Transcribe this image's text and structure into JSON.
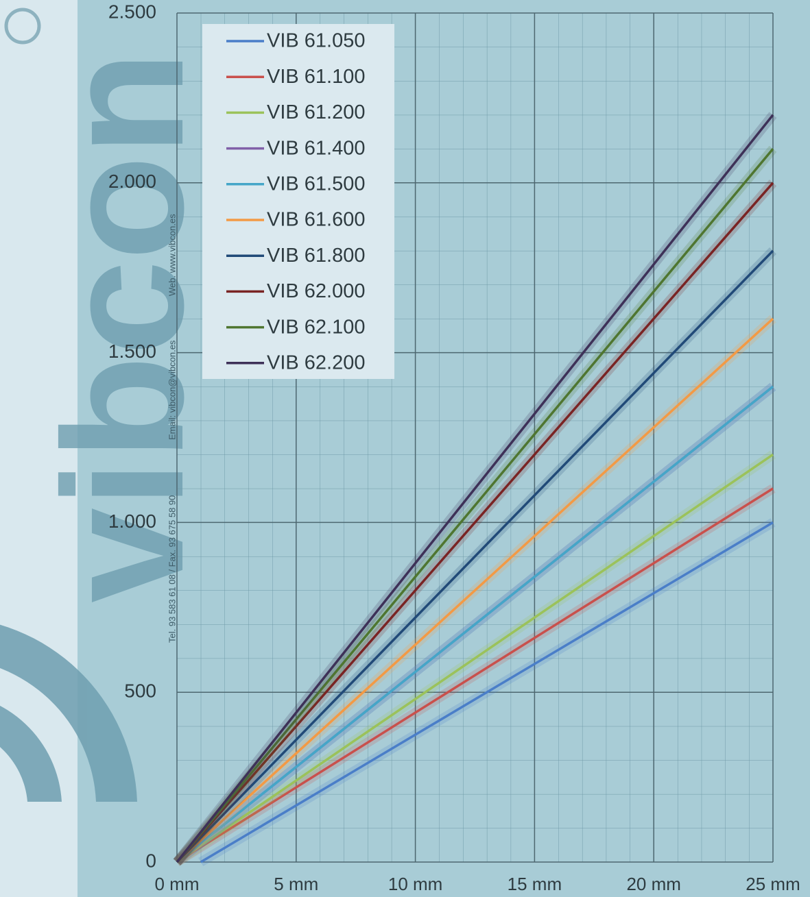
{
  "chart_data": {
    "type": "line",
    "annotations": [
      "vibcon",
      "Tel. 93 583 61 08  / Fax. 93 675 58 90",
      "Email: vibcon@vibcon.es",
      "Web. www.vibcon.es"
    ],
    "x": [
      0,
      1,
      25
    ],
    "xlim": [
      0,
      25
    ],
    "xticks": [
      {
        "value": 0,
        "label": "0 mm"
      },
      {
        "value": 5,
        "label": "5 mm"
      },
      {
        "value": 10,
        "label": "10 mm"
      },
      {
        "value": 15,
        "label": "15 mm"
      },
      {
        "value": 20,
        "label": "20 mm"
      },
      {
        "value": 25,
        "label": "25 mm"
      }
    ],
    "ylim": [
      0,
      2500
    ],
    "yticks": [
      0,
      500,
      {
        "value": 1000,
        "label": "1.000"
      },
      {
        "value": 1500,
        "label": "1.500"
      },
      {
        "value": 2000,
        "label": "2.000"
      },
      {
        "value": 2500,
        "label": "2.500"
      }
    ],
    "grid": true,
    "legend": "upper left",
    "series": [
      {
        "name": "VIB 61.050",
        "color": "#4a7ec8",
        "values": [
          null,
          0,
          1000
        ]
      },
      {
        "name": "VIB 61.100",
        "color": "#c9504c",
        "values": [
          0,
          44,
          1100
        ]
      },
      {
        "name": "VIB 61.200",
        "color": "#9bc25a",
        "values": [
          0,
          48,
          1200
        ]
      },
      {
        "name": "VIB 61.400",
        "color": "#8060a8",
        "values": [
          0,
          56,
          1400
        ]
      },
      {
        "name": "VIB 61.500",
        "color": "#45a6c8",
        "values": [
          0,
          56,
          1400
        ]
      },
      {
        "name": "VIB 61.600",
        "color": "#f39a45",
        "values": [
          0,
          64,
          1600
        ]
      },
      {
        "name": "VIB 61.800",
        "color": "#214a78",
        "values": [
          0,
          72,
          1800
        ]
      },
      {
        "name": "VIB 62.000",
        "color": "#7a2424",
        "values": [
          0,
          80,
          2000
        ]
      },
      {
        "name": "VIB 62.100",
        "color": "#4f7630",
        "values": [
          0,
          84,
          2100
        ]
      },
      {
        "name": "VIB 62.200",
        "color": "#3e3158",
        "values": [
          0,
          88,
          2200
        ]
      }
    ]
  }
}
